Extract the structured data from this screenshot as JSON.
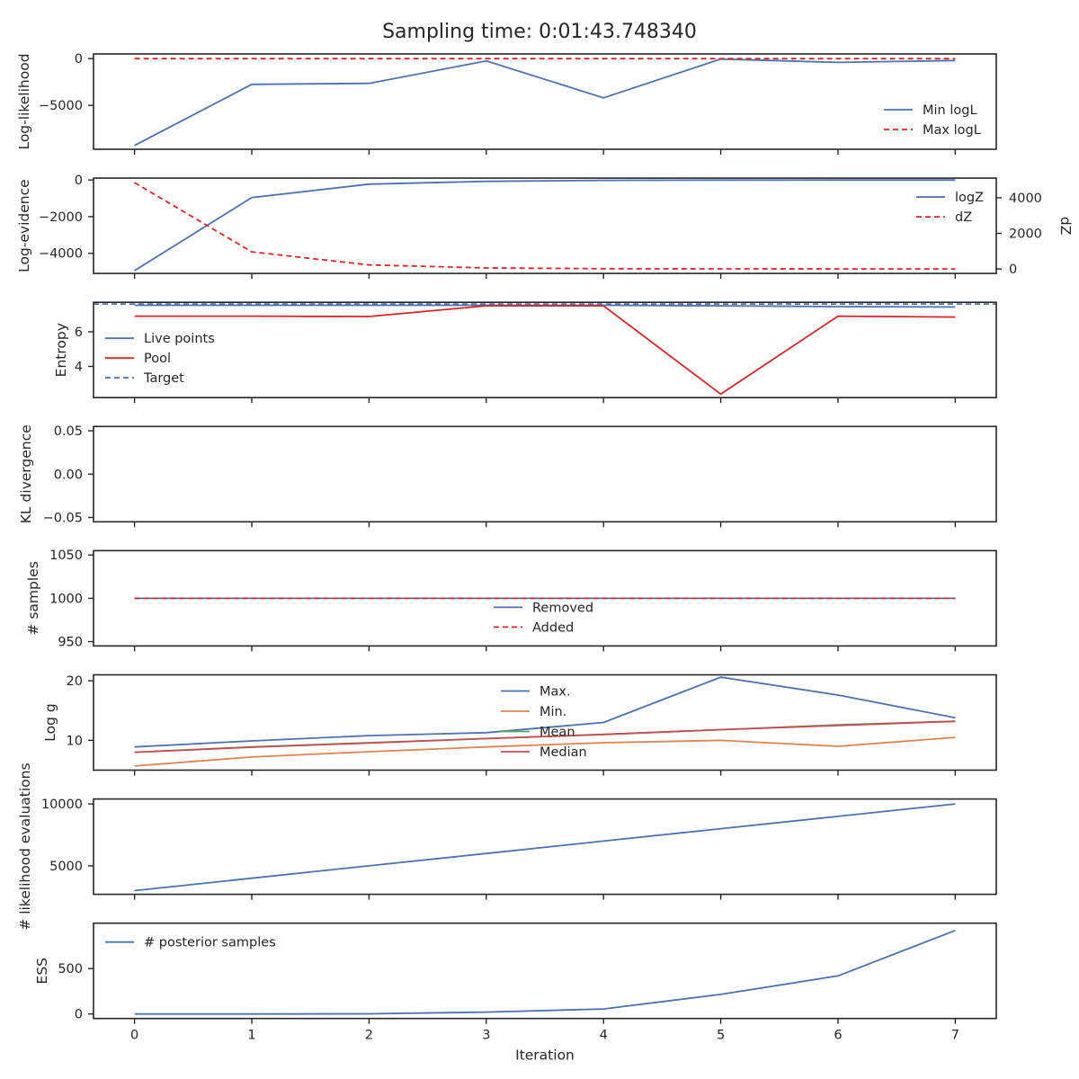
{
  "figure": {
    "title": "Sampling time: 0:01:43.748340"
  },
  "chart_data": [
    {
      "type": "line",
      "ylabel": "Log-likelihood",
      "x": [
        0,
        1,
        2,
        3,
        4,
        5,
        6,
        7
      ],
      "ylim": [
        -9700,
        500
      ],
      "yticks": [
        0,
        -5000
      ],
      "ytick_labels": [
        "0",
        "−5000"
      ],
      "legend": "lower right",
      "series": [
        {
          "name": "Min logL",
          "color": "#4c72b0",
          "dash": false,
          "values": [
            -9300,
            -2750,
            -2650,
            -250,
            -4200,
            -50,
            -400,
            -200
          ]
        },
        {
          "name": "Max logL",
          "color": "#d62728",
          "dash": true,
          "values": [
            0,
            0,
            0,
            0,
            0,
            0,
            0,
            0
          ]
        }
      ]
    },
    {
      "type": "line",
      "ylabel": "Log-evidence",
      "y2label": "dZ",
      "x": [
        0,
        1,
        2,
        3,
        4,
        5,
        6,
        7
      ],
      "ylim": [
        -5100,
        100
      ],
      "yticks": [
        0,
        -2000,
        -4000
      ],
      "ytick_labels": [
        "0",
        "−2000",
        "−4000"
      ],
      "y2lim": [
        -250,
        5100
      ],
      "y2ticks": [
        0,
        2000,
        4000
      ],
      "y2tick_labels": [
        "0",
        "2000",
        "4000"
      ],
      "legend": "upper right",
      "series": [
        {
          "name": "logZ",
          "color": "#4c72b0",
          "dash": false,
          "axis": "left",
          "values": [
            -4950,
            -960,
            -230,
            -75,
            -25,
            -8,
            -3,
            -1
          ]
        },
        {
          "name": "dZ",
          "color": "#d62728",
          "dash": true,
          "axis": "right",
          "values": [
            4850,
            960,
            230,
            60,
            15,
            5,
            2,
            1
          ]
        }
      ]
    },
    {
      "type": "line",
      "ylabel": "Entropy",
      "x": [
        0,
        1,
        2,
        3,
        4,
        5,
        6,
        7
      ],
      "ylim": [
        2.2,
        7.7
      ],
      "yticks": [
        4,
        6
      ],
      "ytick_labels": [
        "4",
        "6"
      ],
      "legend": "center left",
      "series": [
        {
          "name": "Live points",
          "color": "#4c72b0",
          "dash": false,
          "values": [
            7.53,
            7.53,
            7.53,
            7.53,
            7.53,
            7.5,
            7.45,
            7.43
          ]
        },
        {
          "name": "Pool",
          "color": "#d62728",
          "dash": false,
          "values": [
            6.9,
            6.9,
            6.88,
            7.5,
            7.5,
            2.4,
            6.9,
            6.85
          ]
        },
        {
          "name": "Target",
          "color": "#4c72b0",
          "dash": true,
          "hline": 7.6
        }
      ]
    },
    {
      "type": "line",
      "ylabel": "KL divergence",
      "x": [
        0,
        1,
        2,
        3,
        4,
        5,
        6,
        7
      ],
      "ylim": [
        -0.055,
        0.055
      ],
      "yticks": [
        0.05,
        0.0,
        -0.05
      ],
      "ytick_labels": [
        "0.05",
        "0.00",
        "−0.05"
      ],
      "series": []
    },
    {
      "type": "line",
      "ylabel": "# samples",
      "x": [
        0,
        1,
        2,
        3,
        4,
        5,
        6,
        7
      ],
      "ylim": [
        945,
        1055
      ],
      "yticks": [
        1050,
        1000,
        950
      ],
      "ytick_labels": [
        "1050",
        "1000",
        "950"
      ],
      "legend": "lower center",
      "series": [
        {
          "name": "Removed",
          "color": "#4c72b0",
          "dash": false,
          "values": [
            1000,
            1000,
            1000,
            1000,
            1000,
            1000,
            1000,
            1000
          ]
        },
        {
          "name": "Added",
          "color": "#d62728",
          "dash": true,
          "values": [
            1000,
            1000,
            1000,
            1000,
            1000,
            1000,
            1000,
            1000
          ]
        }
      ]
    },
    {
      "type": "line",
      "ylabel": "Log g",
      "x": [
        0,
        1,
        2,
        3,
        4,
        5,
        6,
        7
      ],
      "ylim": [
        5.0,
        21.0
      ],
      "yticks": [
        20,
        10
      ],
      "ytick_labels": [
        "20",
        "10"
      ],
      "legend": "upper center",
      "series": [
        {
          "name": "Max.",
          "color": "#4c72b0",
          "dash": false,
          "values": [
            8.9,
            9.9,
            10.8,
            11.3,
            13.0,
            20.6,
            17.6,
            13.8
          ]
        },
        {
          "name": "Min.",
          "color": "#dd8452",
          "dash": false,
          "values": [
            5.7,
            7.2,
            8.1,
            8.9,
            9.6,
            10.0,
            9.0,
            10.5
          ]
        },
        {
          "name": "Mean",
          "color": "#55a868",
          "dash": false,
          "values": [
            8.0,
            8.9,
            9.6,
            10.3,
            11.0,
            11.8,
            12.6,
            13.2
          ]
        },
        {
          "name": "Median",
          "color": "#c44e52",
          "dash": false,
          "values": [
            8.0,
            8.85,
            9.55,
            10.3,
            11.0,
            11.8,
            12.5,
            13.2
          ]
        }
      ]
    },
    {
      "type": "line",
      "ylabel": "# likelihood evaluations",
      "x": [
        0,
        1,
        2,
        3,
        4,
        5,
        6,
        7
      ],
      "ylim": [
        2700,
        10400
      ],
      "yticks": [
        10000,
        5000
      ],
      "ytick_labels": [
        "10000",
        "5000"
      ],
      "series": [
        {
          "name": "",
          "color": "#4c72b0",
          "dash": false,
          "values": [
            3000,
            4000,
            5000,
            6000,
            7000,
            8000,
            9000,
            10000
          ]
        }
      ]
    },
    {
      "type": "line",
      "ylabel": "ESS",
      "xlabel": "Iteration",
      "x": [
        0,
        1,
        2,
        3,
        4,
        5,
        6,
        7
      ],
      "xtick_labels": [
        "0",
        "1",
        "2",
        "3",
        "4",
        "5",
        "6",
        "7"
      ],
      "ylim": [
        -50,
        1000
      ],
      "yticks": [
        500,
        0
      ],
      "ytick_labels": [
        "500",
        "0"
      ],
      "legend": "upper left",
      "series": [
        {
          "name": "# posterior samples",
          "color": "#4c72b0",
          "dash": false,
          "values": [
            0,
            0,
            2,
            20,
            55,
            215,
            420,
            920
          ]
        }
      ]
    }
  ]
}
